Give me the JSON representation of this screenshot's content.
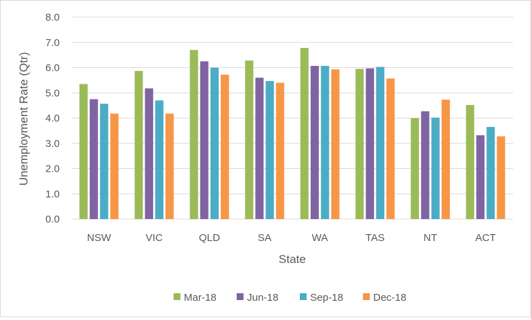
{
  "chart_data": {
    "type": "bar",
    "title": "",
    "xlabel": "State",
    "ylabel": "Unemployment Rate (Qtr)",
    "categories": [
      "NSW",
      "VIC",
      "QLD",
      "SA",
      "WA",
      "TAS",
      "NT",
      "ACT"
    ],
    "ylim": [
      0,
      8
    ],
    "yticks": [
      "0.0",
      "1.0",
      "2.0",
      "3.0",
      "4.0",
      "5.0",
      "6.0",
      "7.0",
      "8.0"
    ],
    "grid": true,
    "legend": "bottom",
    "series": [
      {
        "name": "Mar-18",
        "color": "#9bbb59",
        "values": [
          5.35,
          5.87,
          6.7,
          6.28,
          6.78,
          5.95,
          4.0,
          4.52
        ]
      },
      {
        "name": "Jun-18",
        "color": "#8064a2",
        "values": [
          4.75,
          5.18,
          6.25,
          5.6,
          6.07,
          5.97,
          4.27,
          3.32
        ]
      },
      {
        "name": "Sep-18",
        "color": "#4bacc6",
        "values": [
          4.57,
          4.7,
          6.0,
          5.47,
          6.07,
          6.03,
          4.02,
          3.65
        ]
      },
      {
        "name": "Dec-18",
        "color": "#f79646",
        "values": [
          4.18,
          4.18,
          5.72,
          5.4,
          5.93,
          5.57,
          4.73,
          3.28
        ]
      }
    ]
  }
}
